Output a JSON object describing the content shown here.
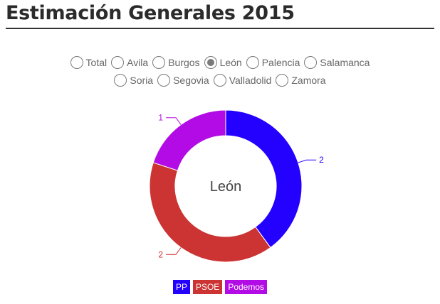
{
  "title": "Estimación Generales 2015",
  "provinces": [
    [
      {
        "label": "Total",
        "checked": false
      },
      {
        "label": "Avila",
        "checked": false
      },
      {
        "label": "Burgos",
        "checked": false
      },
      {
        "label": "León",
        "checked": true
      },
      {
        "label": "Palencia",
        "checked": false
      },
      {
        "label": "Salamanca",
        "checked": false
      }
    ],
    [
      {
        "label": "Soria",
        "checked": false
      },
      {
        "label": "Segovia",
        "checked": false
      },
      {
        "label": "Valladolid",
        "checked": false
      },
      {
        "label": "Zamora",
        "checked": false
      }
    ]
  ],
  "chart_data": {
    "type": "pie",
    "center_label": "León",
    "categories": [
      "PP",
      "PSOE",
      "Podemos"
    ],
    "values": [
      2,
      2,
      1
    ],
    "colors": [
      "#2400ff",
      "#cc3333",
      "#b30be6"
    ],
    "legend_position": "bottom"
  }
}
